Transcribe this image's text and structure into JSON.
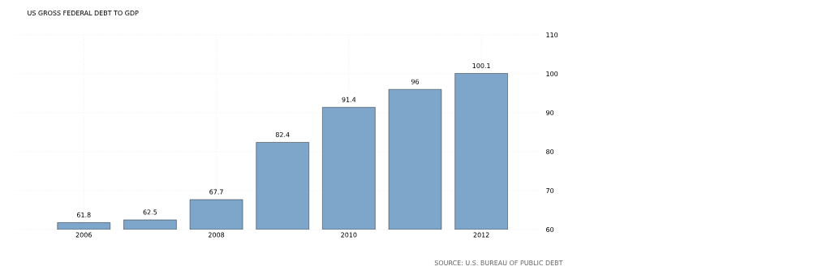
{
  "chart_data": {
    "type": "bar",
    "title": "US GROSS FEDERAL DEBT TO GDP",
    "categories": [
      "2006",
      null,
      "2008",
      null,
      "2010",
      null,
      "2012"
    ],
    "values": [
      61.8,
      62.5,
      67.7,
      82.4,
      91.4,
      96,
      100.1
    ],
    "color": "#7ea6cb",
    "ylim": [
      60,
      110
    ],
    "yticks": [
      60,
      70,
      80,
      90,
      100,
      110
    ],
    "grid": true,
    "data_labels": true,
    "annotations": [
      "SOURCE: U.S. BUREAU OF PUBLIC DEBT"
    ]
  }
}
